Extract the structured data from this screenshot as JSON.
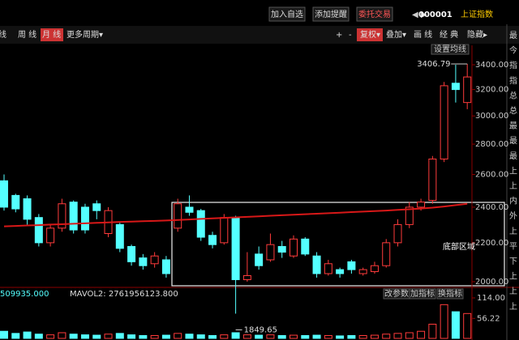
{
  "header": {
    "buttons": [
      "加入自选",
      "添加提醒",
      "委托交易"
    ],
    "code": "000001",
    "name": "上证指数"
  },
  "toolbar": {
    "periods": [
      "线",
      "周 线",
      "月 线",
      "更多周期▾"
    ],
    "tools": [
      "+",
      "-",
      "复权▾",
      "叠加▾",
      "画 线",
      "经 典",
      "隐藏▸"
    ],
    "ma_button": "设置均线"
  },
  "side_panel": [
    "最",
    "今",
    "指",
    "指",
    "总",
    "总",
    "最",
    "最",
    "最",
    "上",
    "上",
    "内",
    "外",
    "上",
    "平",
    "下",
    "上",
    "上",
    "上"
  ],
  "chart_data": {
    "type": "candlestick",
    "log_scale": true,
    "open": [
      2560,
      2470,
      2450,
      2340,
      2200,
      2280,
      2430,
      2400,
      2420,
      2250,
      2300,
      2180,
      2120,
      2090,
      2110,
      2280,
      2400,
      2380,
      2240,
      2200,
      2340,
      2010,
      2140,
      2110,
      2180,
      2130,
      2220,
      2130,
      2040,
      2060,
      2100,
      2040,
      2050,
      2080,
      2200,
      2300,
      2400,
      2440,
      2700,
      3250,
      3100
    ],
    "high": [
      2600,
      2480,
      2470,
      2360,
      2300,
      2450,
      2440,
      2420,
      2440,
      2400,
      2310,
      2190,
      2140,
      2150,
      2130,
      2450,
      2470,
      2390,
      2260,
      2360,
      2350,
      2150,
      2180,
      2250,
      2210,
      2240,
      2230,
      2150,
      2110,
      2070,
      2110,
      2070,
      2100,
      2220,
      2330,
      2430,
      2450,
      2720,
      3260,
      3400,
      3406.79
    ],
    "low": [
      2380,
      2370,
      2300,
      2180,
      2180,
      2260,
      2250,
      2250,
      2330,
      2230,
      2150,
      2080,
      2060,
      2070,
      2020,
      2260,
      2350,
      2210,
      2170,
      2190,
      1849.65,
      2000,
      2060,
      2100,
      2120,
      2120,
      2130,
      2020,
      2030,
      2020,
      2040,
      2030,
      2040,
      2070,
      2180,
      2280,
      2380,
      2420,
      2680,
      3100,
      3050
    ],
    "close": [
      2400,
      2390,
      2330,
      2200,
      2280,
      2420,
      2270,
      2270,
      2380,
      2380,
      2170,
      2100,
      2080,
      2130,
      2040,
      2420,
      2370,
      2230,
      2190,
      2340,
      2010,
      2030,
      2080,
      2190,
      2150,
      2220,
      2140,
      2040,
      2090,
      2040,
      2060,
      2060,
      2080,
      2200,
      2300,
      2400,
      2430,
      2700,
      3230,
      3200,
      3300
    ],
    "up_color": "#ff3b3b",
    "down_color": "#54ffff",
    "ma": {
      "color": "#d81818",
      "values": [
        2290,
        2292,
        2295,
        2297,
        2300,
        2302,
        2305,
        2307,
        2310,
        2312,
        2315,
        2317,
        2319,
        2321,
        2323,
        2326,
        2329,
        2332,
        2335,
        2338,
        2341,
        2344,
        2347,
        2350,
        2353,
        2356,
        2359,
        2362,
        2365,
        2368,
        2371,
        2374,
        2377,
        2380,
        2384,
        2388,
        2392,
        2397,
        2404,
        2412,
        2420
      ]
    },
    "ylim": [
      2000,
      3400
    ],
    "yticks": [
      {
        "value": 2000,
        "label": "2000.00"
      },
      {
        "value": 2200,
        "label": "2200.00"
      },
      {
        "value": 2400,
        "label": "2400.00"
      },
      {
        "value": 2600,
        "label": "2600.00"
      },
      {
        "value": 2800,
        "label": "2800.00"
      },
      {
        "value": 3000,
        "label": "3000.00"
      },
      {
        "value": 3200,
        "label": "3200.00"
      },
      {
        "value": 3400,
        "label": "3400.00"
      }
    ],
    "annotations": {
      "high": {
        "value": 3406.79,
        "label": "3406.79"
      },
      "low": {
        "value": 1849.65,
        "label": "1849.65"
      },
      "region": "底部区域"
    },
    "volume": {
      "legend": [
        "509935.000",
        "MAVOL2: 2761956123.800"
      ],
      "buttons": [
        "改参数",
        "加指标",
        "换指标"
      ],
      "values": [
        20,
        14,
        18,
        12,
        10,
        16,
        12,
        10,
        9,
        12,
        14,
        10,
        8,
        8,
        9,
        14,
        12,
        10,
        8,
        10,
        16,
        10,
        9,
        10,
        8,
        9,
        8,
        9,
        8,
        7,
        8,
        8,
        9,
        12,
        14,
        16,
        20,
        40,
        95,
        75,
        70
      ],
      "ylim": [
        0,
        114
      ],
      "yticks": [
        {
          "value": 56.22,
          "label": "56.22"
        },
        {
          "value": 114,
          "label": "114.00"
        }
      ]
    }
  }
}
